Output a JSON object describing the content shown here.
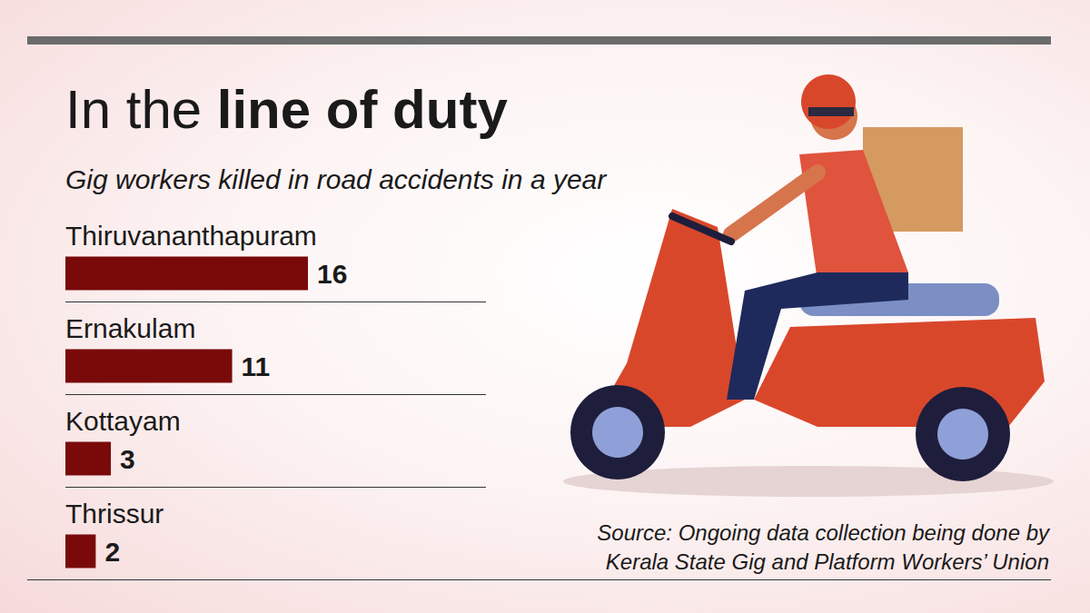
{
  "chart_data": {
    "type": "bar",
    "orientation": "horizontal",
    "title": "In the line of duty",
    "subtitle": "Gig workers killed in road accidents in a year",
    "categories": [
      "Thiruvananthapuram",
      "Ernakulam",
      "Kottayam",
      "Thrissur"
    ],
    "values": [
      16,
      11,
      3,
      2
    ],
    "color": "#7a0a0a",
    "data_labels": true,
    "tick_labels": false,
    "grid": false,
    "source": "Source: Ongoing data collection being done by Kerala State Gig and Platform Workers’ Union"
  }
}
